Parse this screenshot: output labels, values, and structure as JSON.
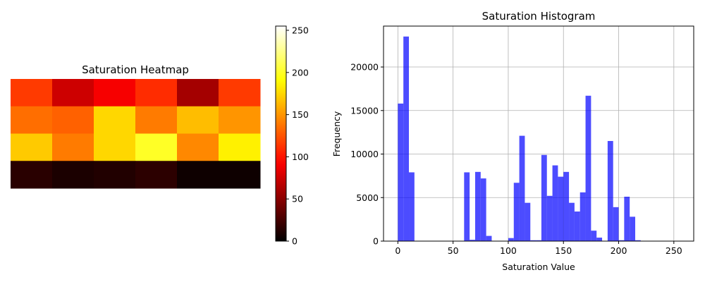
{
  "chart_data": [
    {
      "type": "heatmap",
      "title": "Saturation Heatmap",
      "colormap": "hot",
      "vmin": 0,
      "vmax": 255,
      "colorbar_ticks": [
        0,
        50,
        100,
        150,
        200,
        250
      ],
      "rows": 4,
      "cols": 6,
      "values": [
        [
          115,
          75,
          90,
          110,
          60,
          115
        ],
        [
          135,
          130,
          175,
          140,
          165,
          150
        ],
        [
          170,
          140,
          175,
          200,
          145,
          185
        ],
        [
          15,
          10,
          12,
          16,
          5,
          5
        ]
      ]
    },
    {
      "type": "bar",
      "title": "Saturation Histogram",
      "xlabel": "Saturation Value",
      "ylabel": "Frequency",
      "xlim": [
        -13,
        268
      ],
      "ylim": [
        0,
        24700
      ],
      "xticks": [
        0,
        50,
        100,
        150,
        200,
        250
      ],
      "yticks": [
        0,
        5000,
        10000,
        15000,
        20000
      ],
      "grid": true,
      "bar_color": "#0000ff",
      "bar_opacity": 0.7,
      "bin_width": 5,
      "bin_starts": [
        0,
        5,
        10,
        60,
        65,
        70,
        75,
        80,
        100,
        105,
        110,
        115,
        120,
        125,
        130,
        135,
        140,
        145,
        150,
        155,
        160,
        165,
        170,
        175,
        180,
        190,
        195,
        200,
        205,
        210,
        215
      ],
      "values": [
        15800,
        23500,
        7900,
        7900,
        150,
        7950,
        7200,
        600,
        350,
        6700,
        12100,
        4400,
        100,
        100,
        9900,
        5200,
        8700,
        7400,
        7950,
        4400,
        3400,
        5600,
        16700,
        1200,
        400,
        11500,
        3900,
        100,
        5100,
        2800,
        100
      ]
    }
  ]
}
